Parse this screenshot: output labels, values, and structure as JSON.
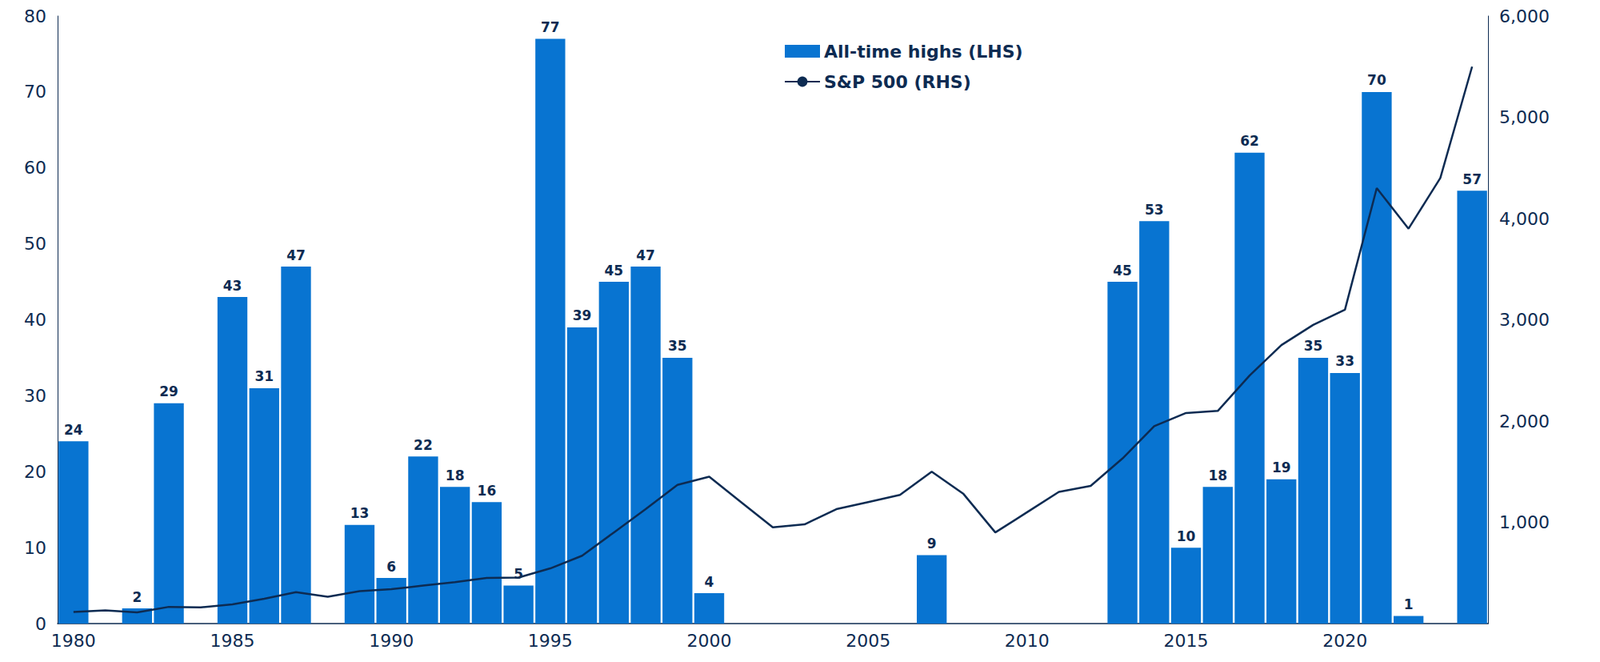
{
  "chart_data": {
    "type": "bar",
    "categories": [
      1980,
      null,
      null,
      null,
      null,
      1985,
      null,
      null,
      null,
      null,
      1990,
      null,
      null,
      null,
      null,
      1995,
      null,
      null,
      null,
      null,
      2000,
      null,
      null,
      null,
      null,
      2005,
      null,
      null,
      null,
      null,
      2010,
      null,
      null,
      null,
      null,
      2015,
      null,
      null,
      null,
      null,
      2020,
      null,
      null,
      null,
      null
    ],
    "series": [
      {
        "name": "All-time highs (LHS)",
        "type": "bar",
        "color": "#0874d1",
        "values": [
          24,
          0,
          2,
          29,
          0,
          43,
          31,
          47,
          0,
          13,
          6,
          22,
          18,
          16,
          5,
          77,
          39,
          45,
          47,
          35,
          4,
          0,
          0,
          0,
          0,
          0,
          0,
          9,
          0,
          0,
          0,
          0,
          0,
          45,
          53,
          10,
          18,
          62,
          19,
          35,
          33,
          70,
          1,
          0,
          57
        ],
        "value_labels": [
          "24",
          null,
          "2",
          "29",
          null,
          "43",
          "31",
          "47",
          null,
          "13",
          "6",
          "22",
          "18",
          "16",
          "5",
          "77",
          "39",
          "45",
          "47",
          "35",
          "4",
          null,
          null,
          null,
          null,
          null,
          null,
          "9",
          null,
          null,
          null,
          null,
          null,
          "45",
          "53",
          "10",
          "18",
          "62",
          "19",
          "35",
          "33",
          "70",
          "1",
          null,
          "57"
        ]
      },
      {
        "name": "S&P 500 (RHS)",
        "type": "line",
        "axis": "y2",
        "color": "#0d2b52",
        "marker": "none",
        "values": [
          115,
          130,
          110,
          165,
          160,
          190,
          245,
          310,
          265,
          320,
          340,
          375,
          410,
          450,
          455,
          545,
          670,
          900,
          1130,
          1370,
          1450,
          1200,
          950,
          980,
          1130,
          1200,
          1270,
          1500,
          1280,
          900,
          1100,
          1300,
          1360,
          1630,
          1950,
          2080,
          2100,
          2450,
          2750,
          2950,
          3100,
          4300,
          3900,
          4400,
          5500
        ]
      }
    ],
    "ylim": [
      0,
      80
    ],
    "yticks": [
      0,
      10,
      20,
      30,
      40,
      50,
      60,
      70,
      80
    ],
    "y2lim": [
      0,
      6000
    ],
    "y2ticks": [
      {
        "value": 1000,
        "label": "1,000"
      },
      {
        "value": 2000,
        "label": "2,000"
      },
      {
        "value": 3000,
        "label": "3,000"
      },
      {
        "value": 4000,
        "label": "4,000"
      },
      {
        "value": 5000,
        "label": "5,000"
      },
      {
        "value": 6000,
        "label": "6,000"
      }
    ],
    "legend": "top",
    "grid": false,
    "data_labels": true
  }
}
